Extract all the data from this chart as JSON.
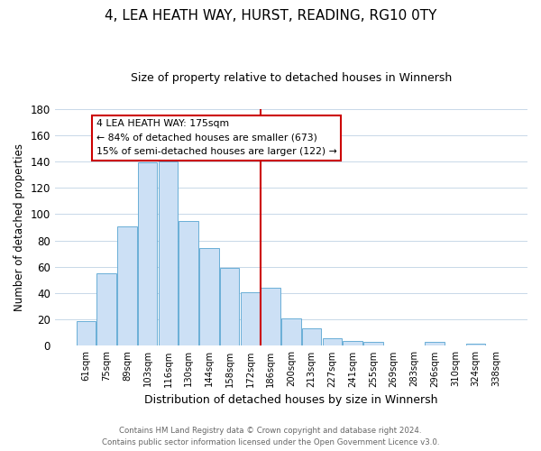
{
  "title": "4, LEA HEATH WAY, HURST, READING, RG10 0TY",
  "subtitle": "Size of property relative to detached houses in Winnersh",
  "xlabel": "Distribution of detached houses by size in Winnersh",
  "ylabel": "Number of detached properties",
  "bar_labels": [
    "61sqm",
    "75sqm",
    "89sqm",
    "103sqm",
    "116sqm",
    "130sqm",
    "144sqm",
    "158sqm",
    "172sqm",
    "186sqm",
    "200sqm",
    "213sqm",
    "227sqm",
    "241sqm",
    "255sqm",
    "269sqm",
    "283sqm",
    "296sqm",
    "310sqm",
    "324sqm",
    "338sqm"
  ],
  "bar_values": [
    19,
    55,
    91,
    139,
    140,
    95,
    74,
    59,
    41,
    44,
    21,
    13,
    6,
    4,
    3,
    0,
    0,
    3,
    0,
    2,
    0
  ],
  "bar_color": "#cce0f5",
  "bar_edge_color": "#6aaed6",
  "ylim": [
    0,
    180
  ],
  "yticks": [
    0,
    20,
    40,
    60,
    80,
    100,
    120,
    140,
    160,
    180
  ],
  "vline_color": "#cc0000",
  "annotation_title": "4 LEA HEATH WAY: 175sqm",
  "annotation_line1": "← 84% of detached houses are smaller (673)",
  "annotation_line2": "15% of semi-detached houses are larger (122) →",
  "footer_line1": "Contains HM Land Registry data © Crown copyright and database right 2024.",
  "footer_line2": "Contains public sector information licensed under the Open Government Licence v3.0.",
  "background_color": "#ffffff",
  "grid_color": "#c8d8e8"
}
